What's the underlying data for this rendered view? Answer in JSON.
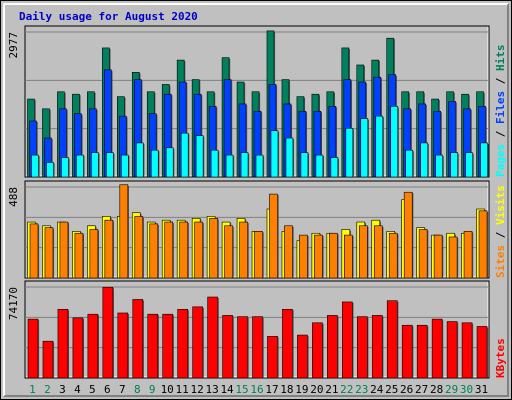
{
  "title": "Daily usage for August 2020",
  "colors": {
    "title": "#0000cc",
    "hits": "#00805c",
    "files": "#0040ff",
    "pages": "#00ffff",
    "visits": "#ffff00",
    "sites": "#ff8000",
    "kbytes": "#ff0000",
    "weekday": "#000000",
    "weekend": "#00805c",
    "plot_bg": "#c0c0c0",
    "grid": "#808080"
  },
  "chart_data": [
    {
      "type": "bar",
      "name": "hits-files-pages",
      "ymax_label": "2977",
      "ymax": 2977,
      "right_label": [
        "Pages",
        "Files",
        "Hits"
      ],
      "series": [
        {
          "name": "Hits",
          "values": [
            1600,
            1400,
            1750,
            1700,
            1750,
            2650,
            1650,
            2150,
            1750,
            1900,
            2400,
            2000,
            1750,
            2450,
            1950,
            1750,
            3000,
            2000,
            1650,
            1700,
            1750,
            2650,
            2300,
            2400,
            2850,
            1750,
            1750,
            1600,
            1750,
            1700,
            1750
          ]
        },
        {
          "name": "Files",
          "values": [
            1150,
            800,
            1400,
            1300,
            1400,
            2200,
            1250,
            2000,
            1300,
            1700,
            1950,
            1700,
            1450,
            2000,
            1500,
            1350,
            1900,
            1500,
            1350,
            1350,
            1450,
            2000,
            1950,
            2050,
            2100,
            1400,
            1500,
            1350,
            1550,
            1400,
            1450
          ]
        },
        {
          "name": "Pages",
          "values": [
            450,
            300,
            400,
            450,
            500,
            500,
            450,
            700,
            550,
            600,
            900,
            850,
            550,
            450,
            500,
            450,
            950,
            800,
            500,
            450,
            400,
            1000,
            1200,
            1250,
            1450,
            550,
            700,
            450,
            500,
            500,
            700
          ]
        }
      ],
      "categories": [
        "1",
        "2",
        "3",
        "4",
        "5",
        "6",
        "7",
        "8",
        "9",
        "10",
        "11",
        "12",
        "13",
        "14",
        "15",
        "16",
        "17",
        "18",
        "19",
        "20",
        "21",
        "22",
        "23",
        "24",
        "25",
        "26",
        "27",
        "28",
        "29",
        "30",
        "31"
      ]
    },
    {
      "type": "bar",
      "name": "visits-sites",
      "ymax_label": "488",
      "ymax": 488,
      "right_label": [
        "Sites",
        "Visits"
      ],
      "series": [
        {
          "name": "Visits",
          "values": [
            300,
            280,
            300,
            250,
            280,
            330,
            330,
            350,
            300,
            310,
            310,
            320,
            330,
            300,
            320,
            250,
            370,
            250,
            200,
            240,
            240,
            260,
            300,
            310,
            250,
            420,
            270,
            230,
            240,
            240,
            370
          ]
        },
        {
          "name": "Sites",
          "values": [
            290,
            270,
            300,
            240,
            260,
            310,
            500,
            330,
            290,
            300,
            300,
            300,
            320,
            280,
            300,
            250,
            450,
            280,
            230,
            230,
            240,
            230,
            280,
            280,
            240,
            460,
            260,
            230,
            220,
            250,
            360
          ]
        }
      ]
    },
    {
      "type": "bar",
      "name": "kbytes",
      "ymax_label": "74170",
      "ymax": 74170,
      "right_label": [
        "KBytes"
      ],
      "series": [
        {
          "name": "KBytes",
          "values": [
            48000,
            30000,
            56000,
            49000,
            52000,
            74000,
            53000,
            64000,
            52000,
            52000,
            56000,
            58000,
            66000,
            51000,
            50000,
            50000,
            34000,
            56000,
            35000,
            45000,
            51000,
            62000,
            50000,
            51000,
            63000,
            43000,
            43000,
            48000,
            46000,
            45000,
            42000
          ]
        }
      ]
    }
  ],
  "weekend_days": [
    1,
    2,
    8,
    9,
    15,
    16,
    22,
    23,
    29,
    30
  ]
}
